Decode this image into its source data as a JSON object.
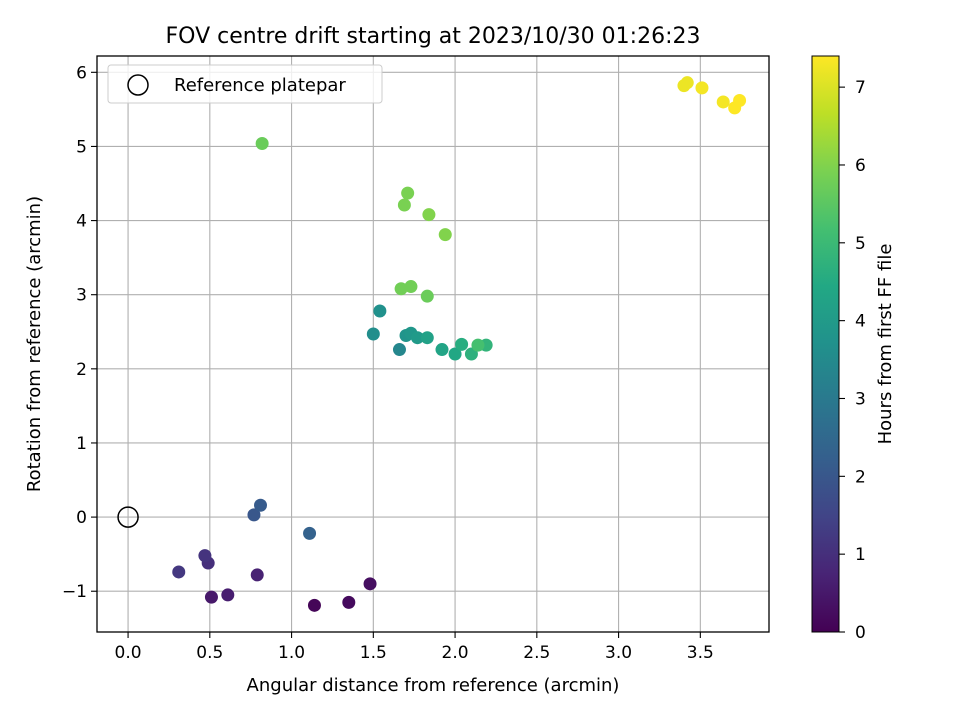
{
  "chart_data": {
    "type": "scatter",
    "title": "FOV centre drift starting at 2023/10/30 01:26:23",
    "xlabel": "Angular distance from reference (arcmin)",
    "ylabel": "Rotation from reference (arcmin)",
    "xlim": [
      -0.19,
      3.92
    ],
    "ylim": [
      -1.55,
      6.22
    ],
    "xticks": [
      0.0,
      0.5,
      1.0,
      1.5,
      2.0,
      2.5,
      3.0,
      3.5
    ],
    "xtick_labels": [
      "0.0",
      "0.5",
      "1.0",
      "1.5",
      "2.0",
      "2.5",
      "3.0",
      "3.5"
    ],
    "yticks": [
      -1,
      0,
      1,
      2,
      3,
      4,
      5,
      6
    ],
    "ytick_labels": [
      "−1",
      "0",
      "1",
      "2",
      "3",
      "4",
      "5",
      "6"
    ],
    "grid": true,
    "legend": {
      "position": "top-left",
      "entries": [
        "Reference platepar"
      ]
    },
    "reference": {
      "name": "Reference platepar",
      "x": 0.0,
      "y": 0.0
    },
    "colorbar": {
      "label": "Hours from first FF file",
      "range": [
        0,
        7.4
      ],
      "ticks": [
        0,
        1,
        2,
        3,
        4,
        5,
        6,
        7
      ],
      "tick_labels": [
        "0",
        "1",
        "2",
        "3",
        "4",
        "5",
        "6",
        "7"
      ],
      "colormap": "viridis"
    },
    "points": [
      {
        "x": 1.14,
        "y": -1.19,
        "c": 0.1
      },
      {
        "x": 1.35,
        "y": -1.15,
        "c": 0.2
      },
      {
        "x": 1.48,
        "y": -0.9,
        "c": 0.3
      },
      {
        "x": 0.51,
        "y": -1.08,
        "c": 0.5
      },
      {
        "x": 0.61,
        "y": -1.05,
        "c": 0.6
      },
      {
        "x": 0.79,
        "y": -0.78,
        "c": 0.7
      },
      {
        "x": 0.49,
        "y": -0.62,
        "c": 1.0
      },
      {
        "x": 0.47,
        "y": -0.52,
        "c": 1.1
      },
      {
        "x": 0.31,
        "y": -0.74,
        "c": 1.2
      },
      {
        "x": 0.77,
        "y": 0.03,
        "c": 2.0
      },
      {
        "x": 0.81,
        "y": 0.16,
        "c": 2.1
      },
      {
        "x": 1.11,
        "y": -0.22,
        "c": 2.3
      },
      {
        "x": 1.66,
        "y": 2.26,
        "c": 3.4
      },
      {
        "x": 1.5,
        "y": 2.47,
        "c": 3.6
      },
      {
        "x": 1.54,
        "y": 2.78,
        "c": 3.7
      },
      {
        "x": 1.7,
        "y": 2.45,
        "c": 3.8
      },
      {
        "x": 1.73,
        "y": 2.48,
        "c": 3.9
      },
      {
        "x": 1.77,
        "y": 2.42,
        "c": 4.0
      },
      {
        "x": 1.83,
        "y": 2.42,
        "c": 4.2
      },
      {
        "x": 1.92,
        "y": 2.26,
        "c": 4.3
      },
      {
        "x": 2.0,
        "y": 2.2,
        "c": 4.4
      },
      {
        "x": 2.04,
        "y": 2.33,
        "c": 4.6
      },
      {
        "x": 2.1,
        "y": 2.2,
        "c": 4.7
      },
      {
        "x": 2.19,
        "y": 2.32,
        "c": 4.8
      },
      {
        "x": 2.14,
        "y": 2.32,
        "c": 5.2
      },
      {
        "x": 1.67,
        "y": 3.08,
        "c": 5.8
      },
      {
        "x": 1.73,
        "y": 3.11,
        "c": 5.8
      },
      {
        "x": 1.83,
        "y": 2.98,
        "c": 5.7
      },
      {
        "x": 1.94,
        "y": 3.81,
        "c": 6.0
      },
      {
        "x": 1.84,
        "y": 4.08,
        "c": 6.0
      },
      {
        "x": 1.69,
        "y": 4.21,
        "c": 5.9
      },
      {
        "x": 1.71,
        "y": 4.37,
        "c": 5.9
      },
      {
        "x": 0.82,
        "y": 5.04,
        "c": 5.7
      },
      {
        "x": 3.4,
        "y": 5.82,
        "c": 7.2
      },
      {
        "x": 3.42,
        "y": 5.86,
        "c": 7.2
      },
      {
        "x": 3.51,
        "y": 5.79,
        "c": 7.3
      },
      {
        "x": 3.64,
        "y": 5.6,
        "c": 7.3
      },
      {
        "x": 3.71,
        "y": 5.52,
        "c": 7.4
      },
      {
        "x": 3.74,
        "y": 5.62,
        "c": 7.4
      }
    ]
  }
}
